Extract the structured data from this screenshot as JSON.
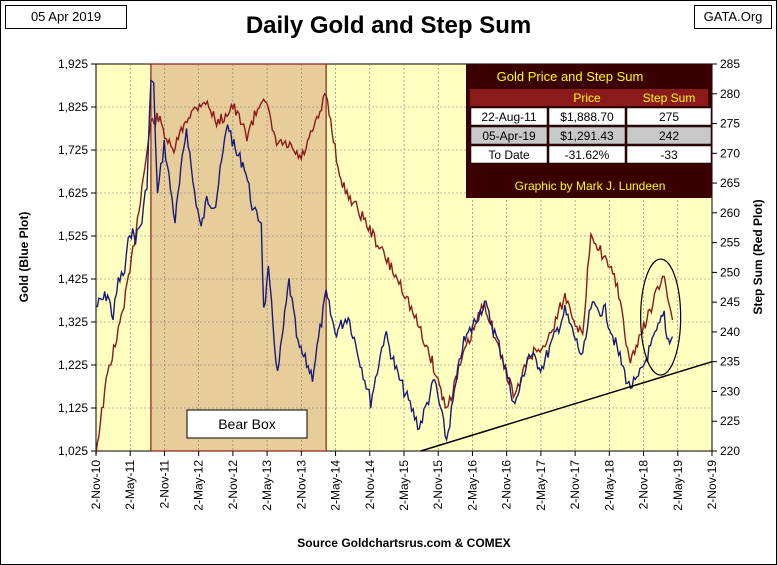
{
  "header": {
    "date": "05 Apr 2019",
    "site": "GATA.Org"
  },
  "chart_data": {
    "type": "line",
    "title": "Daily Gold and Step Sum",
    "xlabel": "Source Goldchartsrus.com & COMEX",
    "ylabel_left": "Gold   (Blue Plot)",
    "ylabel_right": "Step Sum   (Red Plot)",
    "x_tick_labels": [
      "2-Nov-10",
      "2-May-11",
      "2-Nov-11",
      "2-May-12",
      "2-Nov-12",
      "2-May-13",
      "2-Nov-13",
      "2-May-14",
      "2-Nov-14",
      "2-May-15",
      "2-Nov-15",
      "2-May-16",
      "2-Nov-16",
      "2-May-17",
      "2-Nov-17",
      "2-May-18",
      "2-Nov-18",
      "2-May-19",
      "2-Nov-19"
    ],
    "y_left_ticks": [
      "1,925",
      "1,825",
      "1,725",
      "1,625",
      "1,525",
      "1,425",
      "1,325",
      "1,225",
      "1,125",
      "1,025"
    ],
    "y_right_ticks": [
      "285",
      "280",
      "275",
      "270",
      "265",
      "260",
      "255",
      "250",
      "245",
      "240",
      "235",
      "230",
      "225",
      "220"
    ],
    "y_left_range": [
      1025,
      1925
    ],
    "y_right_range": [
      220,
      285
    ],
    "x_range": [
      "2010-11-02",
      "2019-11-02"
    ],
    "series": [
      {
        "axis": "left",
        "color": "#1a1a7a",
        "points": [
          [
            "2010-11-02",
            1360
          ],
          [
            "2011-01-03",
            1390
          ],
          [
            "2011-02-01",
            1335
          ],
          [
            "2011-03-01",
            1420
          ],
          [
            "2011-04-04",
            1440
          ],
          [
            "2011-05-02",
            1540
          ],
          [
            "2011-06-01",
            1520
          ],
          [
            "2011-07-05",
            1560
          ],
          [
            "2011-08-01",
            1650
          ],
          [
            "2011-08-22",
            1888
          ],
          [
            "2011-09-06",
            1870
          ],
          [
            "2011-09-26",
            1620
          ],
          [
            "2011-11-01",
            1740
          ],
          [
            "2011-12-29",
            1560
          ],
          [
            "2012-02-28",
            1780
          ],
          [
            "2012-04-02",
            1650
          ],
          [
            "2012-05-16",
            1540
          ],
          [
            "2012-06-15",
            1610
          ],
          [
            "2012-08-01",
            1600
          ],
          [
            "2012-10-04",
            1790
          ],
          [
            "2012-11-15",
            1720
          ],
          [
            "2013-01-02",
            1690
          ],
          [
            "2013-02-20",
            1580
          ],
          [
            "2013-04-02",
            1560
          ],
          [
            "2013-04-15",
            1350
          ],
          [
            "2013-05-10",
            1440
          ],
          [
            "2013-06-28",
            1200
          ],
          [
            "2013-08-28",
            1420
          ],
          [
            "2013-10-15",
            1270
          ],
          [
            "2013-12-31",
            1200
          ],
          [
            "2014-03-14",
            1390
          ],
          [
            "2014-05-01",
            1300
          ],
          [
            "2014-07-10",
            1340
          ],
          [
            "2014-11-07",
            1140
          ],
          [
            "2015-01-22",
            1300
          ],
          [
            "2015-04-01",
            1200
          ],
          [
            "2015-07-24",
            1080
          ],
          [
            "2015-10-14",
            1190
          ],
          [
            "2015-12-17",
            1050
          ],
          [
            "2016-03-10",
            1270
          ],
          [
            "2016-07-06",
            1370
          ],
          [
            "2016-10-07",
            1250
          ],
          [
            "2016-12-15",
            1130
          ],
          [
            "2017-02-28",
            1250
          ],
          [
            "2017-05-09",
            1220
          ],
          [
            "2017-09-08",
            1350
          ],
          [
            "2017-12-12",
            1240
          ],
          [
            "2018-01-25",
            1360
          ],
          [
            "2018-04-11",
            1350
          ],
          [
            "2018-08-16",
            1175
          ],
          [
            "2018-09-27",
            1185
          ],
          [
            "2019-02-20",
            1345
          ],
          [
            "2019-03-07",
            1285
          ],
          [
            "2019-04-05",
            1291
          ]
        ]
      },
      {
        "axis": "right",
        "color": "#8b1a1a",
        "points": [
          [
            "2010-11-02",
            220
          ],
          [
            "2011-01-03",
            233
          ],
          [
            "2011-03-01",
            240
          ],
          [
            "2011-05-02",
            250
          ],
          [
            "2011-08-22",
            275
          ],
          [
            "2011-10-01",
            276
          ],
          [
            "2011-12-15",
            270
          ],
          [
            "2012-03-01",
            276
          ],
          [
            "2012-06-01",
            279
          ],
          [
            "2012-08-15",
            275
          ],
          [
            "2012-11-01",
            278
          ],
          [
            "2013-01-15",
            273
          ],
          [
            "2013-04-15",
            280
          ],
          [
            "2013-06-15",
            272
          ],
          [
            "2013-09-01",
            271
          ],
          [
            "2013-11-01",
            269
          ],
          [
            "2014-02-01",
            276
          ],
          [
            "2014-03-14",
            280
          ],
          [
            "2014-06-01",
            265
          ],
          [
            "2014-10-01",
            259
          ],
          [
            "2015-01-15",
            253
          ],
          [
            "2015-05-01",
            247
          ],
          [
            "2015-08-01",
            240
          ],
          [
            "2015-10-01",
            235
          ],
          [
            "2015-12-17",
            227
          ],
          [
            "2016-03-15",
            236
          ],
          [
            "2016-07-06",
            245
          ],
          [
            "2016-10-01",
            236
          ],
          [
            "2016-12-15",
            229
          ],
          [
            "2017-03-01",
            236
          ],
          [
            "2017-06-01",
            238
          ],
          [
            "2017-09-08",
            246
          ],
          [
            "2017-12-12",
            239
          ],
          [
            "2018-01-25",
            257
          ],
          [
            "2018-04-11",
            252
          ],
          [
            "2018-06-15",
            248
          ],
          [
            "2018-08-16",
            235
          ],
          [
            "2018-10-01",
            238
          ],
          [
            "2019-01-15",
            247
          ],
          [
            "2019-02-20",
            249
          ],
          [
            "2019-04-05",
            242
          ]
        ]
      }
    ],
    "annotations": {
      "bear_box": {
        "label": "Bear Box",
        "from": "2011-08-22",
        "to": "2014-03-14"
      },
      "trendline_axis": "right",
      "trendline": [
        [
          "2015-08-01",
          220
        ],
        [
          "2019-11-02",
          235
        ]
      ],
      "ellipse_around": "2019-02-01"
    },
    "table": {
      "title": "Gold Price and Step Sum",
      "headers": [
        "",
        "Price",
        "Step Sum"
      ],
      "rows": [
        [
          "22-Aug-11",
          "$1,888.70",
          "275"
        ],
        [
          "05-Apr-19",
          "$1,291.43",
          "242"
        ],
        [
          "To Date",
          "-31.62%",
          "-33"
        ]
      ],
      "footer": "Graphic by Mark J. Lundeen"
    },
    "colors": {
      "plot_bg": "#ffffc0",
      "bear_box": "#e6cd9a",
      "gold_line": "#1a1a7a",
      "step_line": "#8b1a1a",
      "table_bg": "#3a0000",
      "table_text": "#ffff00"
    }
  }
}
